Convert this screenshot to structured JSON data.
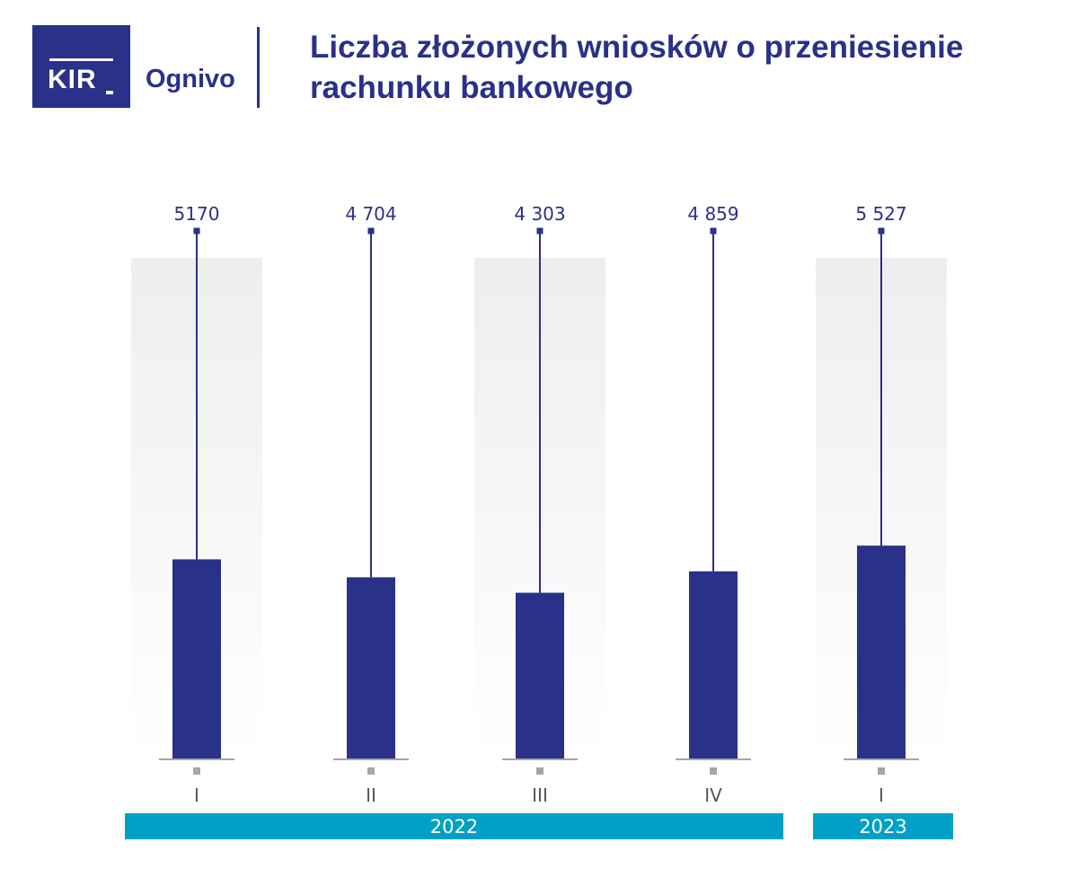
{
  "header": {
    "logo_text": "KIR",
    "brand": "Ognivo",
    "title_line1": "Liczba złożonych wniosków o przeniesienie",
    "title_line2": "rachunku bankowego"
  },
  "colors": {
    "bar": "#2a3189",
    "year_band": "#00a0c6",
    "background_band": "#f2f2f2",
    "axis": "#a6a6a6"
  },
  "chart_data": {
    "type": "bar",
    "title": "Liczba złożonych wniosków o przeniesienie rachunku bankowego",
    "xlabel": "",
    "ylabel": "",
    "categories": [
      "I",
      "II",
      "III",
      "IV",
      "I"
    ],
    "value_labels": [
      "5170",
      "4 704",
      "4 303",
      "4 859",
      "5 527"
    ],
    "values": [
      5170,
      4704,
      4303,
      4859,
      5527
    ],
    "groups": [
      {
        "label": "2022",
        "categories": [
          0,
          1,
          2,
          3
        ]
      },
      {
        "label": "2023",
        "categories": [
          4
        ]
      }
    ],
    "ylim": [
      0,
      14000
    ],
    "grid": false,
    "legend": "none"
  }
}
